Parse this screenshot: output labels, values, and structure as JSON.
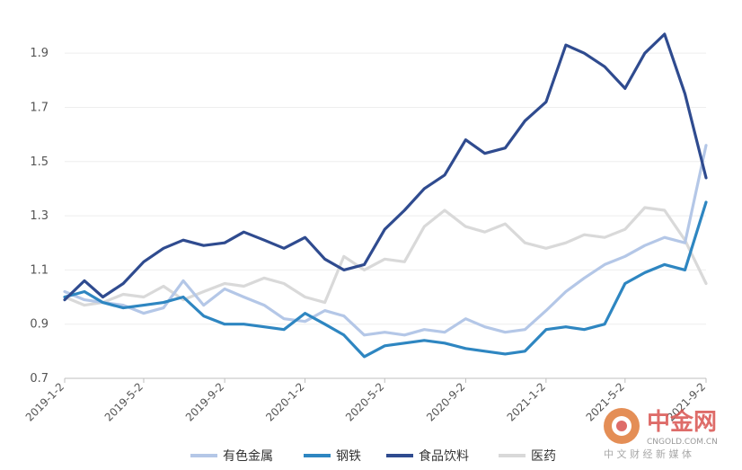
{
  "chart_data": {
    "type": "line",
    "title": "",
    "xlabel": "",
    "ylabel": "",
    "ylim": [
      0.7,
      2.0
    ],
    "yticks": [
      "0.7",
      "0.9",
      "1.1",
      "1.3",
      "1.5",
      "1.7",
      "1.9"
    ],
    "xticks": [
      "2019-1-2",
      "2019-5-2",
      "2019-9-2",
      "2020-1-2",
      "2020-5-2",
      "2020-9-2",
      "2021-1-2",
      "2021-5-2",
      "2021-9-2"
    ],
    "grid": "horizontal",
    "legend_position": "bottom",
    "x": [
      "2019-1-2",
      "2019-2-1",
      "2019-3-1",
      "2019-4-1",
      "2019-5-2",
      "2019-6-1",
      "2019-7-1",
      "2019-8-1",
      "2019-9-2",
      "2019-10-1",
      "2019-11-1",
      "2019-12-1",
      "2020-1-2",
      "2020-2-1",
      "2020-3-1",
      "2020-4-1",
      "2020-5-2",
      "2020-6-1",
      "2020-7-1",
      "2020-8-1",
      "2020-9-2",
      "2020-10-1",
      "2020-11-1",
      "2020-12-1",
      "2021-1-2",
      "2021-2-1",
      "2021-3-1",
      "2021-4-1",
      "2021-5-2",
      "2021-6-1",
      "2021-7-1",
      "2021-8-1",
      "2021-9-2"
    ],
    "series": [
      {
        "name": "有色金属",
        "color": "#b4c7e7",
        "values": [
          1.02,
          0.99,
          0.98,
          0.97,
          0.94,
          0.96,
          1.06,
          0.97,
          1.03,
          1.0,
          0.97,
          0.92,
          0.91,
          0.95,
          0.93,
          0.86,
          0.87,
          0.86,
          0.88,
          0.87,
          0.92,
          0.89,
          0.87,
          0.88,
          0.95,
          1.02,
          1.07,
          1.12,
          1.15,
          1.19,
          1.22,
          1.2,
          1.56
        ]
      },
      {
        "name": "钢铁",
        "color": "#2e86c1",
        "values": [
          1.0,
          1.02,
          0.98,
          0.96,
          0.97,
          0.98,
          1.0,
          0.93,
          0.9,
          0.9,
          0.89,
          0.88,
          0.94,
          0.9,
          0.86,
          0.78,
          0.82,
          0.83,
          0.84,
          0.83,
          0.81,
          0.8,
          0.79,
          0.8,
          0.88,
          0.89,
          0.88,
          0.9,
          1.05,
          1.09,
          1.12,
          1.1,
          1.35
        ]
      },
      {
        "name": "食品饮料",
        "color": "#2f4b8f",
        "values": [
          0.99,
          1.06,
          1.0,
          1.05,
          1.13,
          1.18,
          1.21,
          1.19,
          1.2,
          1.24,
          1.21,
          1.18,
          1.22,
          1.14,
          1.1,
          1.12,
          1.25,
          1.32,
          1.4,
          1.45,
          1.58,
          1.53,
          1.55,
          1.65,
          1.72,
          1.93,
          1.9,
          1.85,
          1.77,
          1.9,
          1.97,
          1.75,
          1.44
        ]
      },
      {
        "name": "医药",
        "color": "#d9d9d9",
        "values": [
          1.0,
          0.97,
          0.98,
          1.01,
          1.0,
          1.04,
          0.99,
          1.02,
          1.05,
          1.04,
          1.07,
          1.05,
          1.0,
          0.98,
          1.15,
          1.1,
          1.14,
          1.13,
          1.26,
          1.32,
          1.26,
          1.24,
          1.27,
          1.2,
          1.18,
          1.2,
          1.23,
          1.22,
          1.25,
          1.33,
          1.32,
          1.21,
          1.05
        ]
      }
    ]
  },
  "watermark": {
    "name": "中金网",
    "site": "CNGOLD.COM.CN",
    "tagline": "中 文 财 经 新 媒 体"
  }
}
